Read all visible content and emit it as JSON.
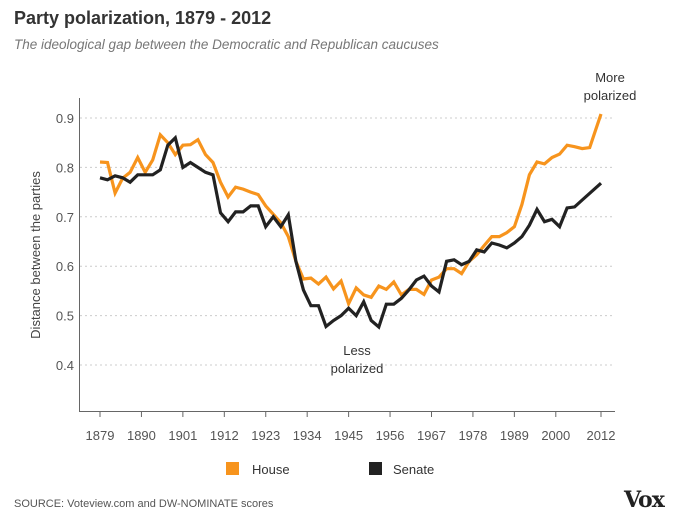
{
  "title": "Party polarization, 1879 - 2012",
  "subtitle": "The ideological gap between the Democratic and Republican caucuses",
  "source": "SOURCE: Voteview.com and DW-NOMINATE scores",
  "logo": "Vox",
  "chart_data": {
    "type": "line",
    "ylabel": "Distance between the parties",
    "xlabel": "",
    "xlim": [
      1879,
      2012
    ],
    "ylim": [
      0.35,
      0.95
    ],
    "xticks": [
      "1879",
      "1890",
      "1901",
      "1912",
      "1923",
      "1934",
      "1945",
      "1956",
      "1967",
      "1978",
      "1989",
      "2000",
      "2012"
    ],
    "yticks": [
      "0.4",
      "0.5",
      "0.6",
      "0.7",
      "0.8",
      "0.9"
    ],
    "grid": "horizontal dotted",
    "legend": "bottom",
    "annotations": [
      {
        "lines": [
          "More",
          "polarized"
        ],
        "x": 2012,
        "y": 0.95
      },
      {
        "lines": [
          "Less",
          "polarized"
        ],
        "x": 1950,
        "y": 0.45
      }
    ],
    "series": [
      {
        "name": "House",
        "color": "#f7941d",
        "points": [
          [
            1879,
            0.811
          ],
          [
            1881,
            0.81
          ],
          [
            1883,
            0.748
          ],
          [
            1885,
            0.778
          ],
          [
            1887,
            0.79
          ],
          [
            1889,
            0.82
          ],
          [
            1891,
            0.79
          ],
          [
            1893,
            0.815
          ],
          [
            1895,
            0.866
          ],
          [
            1897,
            0.85
          ],
          [
            1899,
            0.826
          ],
          [
            1901,
            0.845
          ],
          [
            1903,
            0.846
          ],
          [
            1905,
            0.856
          ],
          [
            1907,
            0.826
          ],
          [
            1909,
            0.81
          ],
          [
            1911,
            0.77
          ],
          [
            1913,
            0.74
          ],
          [
            1915,
            0.76
          ],
          [
            1917,
            0.756
          ],
          [
            1919,
            0.75
          ],
          [
            1921,
            0.745
          ],
          [
            1923,
            0.722
          ],
          [
            1925,
            0.705
          ],
          [
            1927,
            0.688
          ],
          [
            1929,
            0.66
          ],
          [
            1931,
            0.61
          ],
          [
            1933,
            0.574
          ],
          [
            1935,
            0.576
          ],
          [
            1937,
            0.564
          ],
          [
            1939,
            0.578
          ],
          [
            1941,
            0.554
          ],
          [
            1943,
            0.57
          ],
          [
            1945,
            0.524
          ],
          [
            1947,
            0.556
          ],
          [
            1949,
            0.542
          ],
          [
            1951,
            0.537
          ],
          [
            1953,
            0.56
          ],
          [
            1955,
            0.553
          ],
          [
            1957,
            0.568
          ],
          [
            1959,
            0.542
          ],
          [
            1961,
            0.553
          ],
          [
            1963,
            0.553
          ],
          [
            1965,
            0.543
          ],
          [
            1967,
            0.572
          ],
          [
            1969,
            0.578
          ],
          [
            1971,
            0.595
          ],
          [
            1973,
            0.595
          ],
          [
            1975,
            0.585
          ],
          [
            1977,
            0.61
          ],
          [
            1979,
            0.623
          ],
          [
            1981,
            0.642
          ],
          [
            1983,
            0.66
          ],
          [
            1985,
            0.66
          ],
          [
            1987,
            0.668
          ],
          [
            1989,
            0.68
          ],
          [
            1991,
            0.725
          ],
          [
            1993,
            0.785
          ],
          [
            1995,
            0.811
          ],
          [
            1997,
            0.807
          ],
          [
            1999,
            0.82
          ],
          [
            2001,
            0.827
          ],
          [
            2003,
            0.845
          ],
          [
            2005,
            0.842
          ],
          [
            2007,
            0.838
          ],
          [
            2009,
            0.84
          ],
          [
            2012,
            0.908
          ]
        ]
      },
      {
        "name": "Senate",
        "color": "#222222",
        "points": [
          [
            1879,
            0.779
          ],
          [
            1881,
            0.775
          ],
          [
            1883,
            0.783
          ],
          [
            1885,
            0.779
          ],
          [
            1887,
            0.77
          ],
          [
            1889,
            0.785
          ],
          [
            1891,
            0.785
          ],
          [
            1893,
            0.785
          ],
          [
            1895,
            0.795
          ],
          [
            1897,
            0.845
          ],
          [
            1899,
            0.86
          ],
          [
            1901,
            0.8
          ],
          [
            1903,
            0.81
          ],
          [
            1905,
            0.8
          ],
          [
            1907,
            0.79
          ],
          [
            1909,
            0.785
          ],
          [
            1911,
            0.708
          ],
          [
            1913,
            0.69
          ],
          [
            1915,
            0.71
          ],
          [
            1917,
            0.71
          ],
          [
            1919,
            0.722
          ],
          [
            1921,
            0.722
          ],
          [
            1923,
            0.68
          ],
          [
            1925,
            0.7
          ],
          [
            1927,
            0.68
          ],
          [
            1929,
            0.704
          ],
          [
            1931,
            0.61
          ],
          [
            1933,
            0.552
          ],
          [
            1935,
            0.52
          ],
          [
            1937,
            0.52
          ],
          [
            1939,
            0.478
          ],
          [
            1941,
            0.49
          ],
          [
            1943,
            0.5
          ],
          [
            1945,
            0.515
          ],
          [
            1947,
            0.5
          ],
          [
            1949,
            0.528
          ],
          [
            1951,
            0.49
          ],
          [
            1953,
            0.477
          ],
          [
            1955,
            0.523
          ],
          [
            1957,
            0.523
          ],
          [
            1959,
            0.535
          ],
          [
            1961,
            0.552
          ],
          [
            1963,
            0.572
          ],
          [
            1965,
            0.58
          ],
          [
            1967,
            0.56
          ],
          [
            1969,
            0.548
          ],
          [
            1971,
            0.61
          ],
          [
            1973,
            0.613
          ],
          [
            1975,
            0.603
          ],
          [
            1977,
            0.61
          ],
          [
            1979,
            0.633
          ],
          [
            1981,
            0.629
          ],
          [
            1983,
            0.647
          ],
          [
            1985,
            0.643
          ],
          [
            1987,
            0.637
          ],
          [
            1989,
            0.647
          ],
          [
            1991,
            0.66
          ],
          [
            1993,
            0.683
          ],
          [
            1995,
            0.715
          ],
          [
            1997,
            0.69
          ],
          [
            1999,
            0.695
          ],
          [
            2001,
            0.68
          ],
          [
            2003,
            0.718
          ],
          [
            2005,
            0.72
          ],
          [
            2007,
            0.734
          ],
          [
            2012,
            0.768
          ]
        ]
      }
    ]
  }
}
